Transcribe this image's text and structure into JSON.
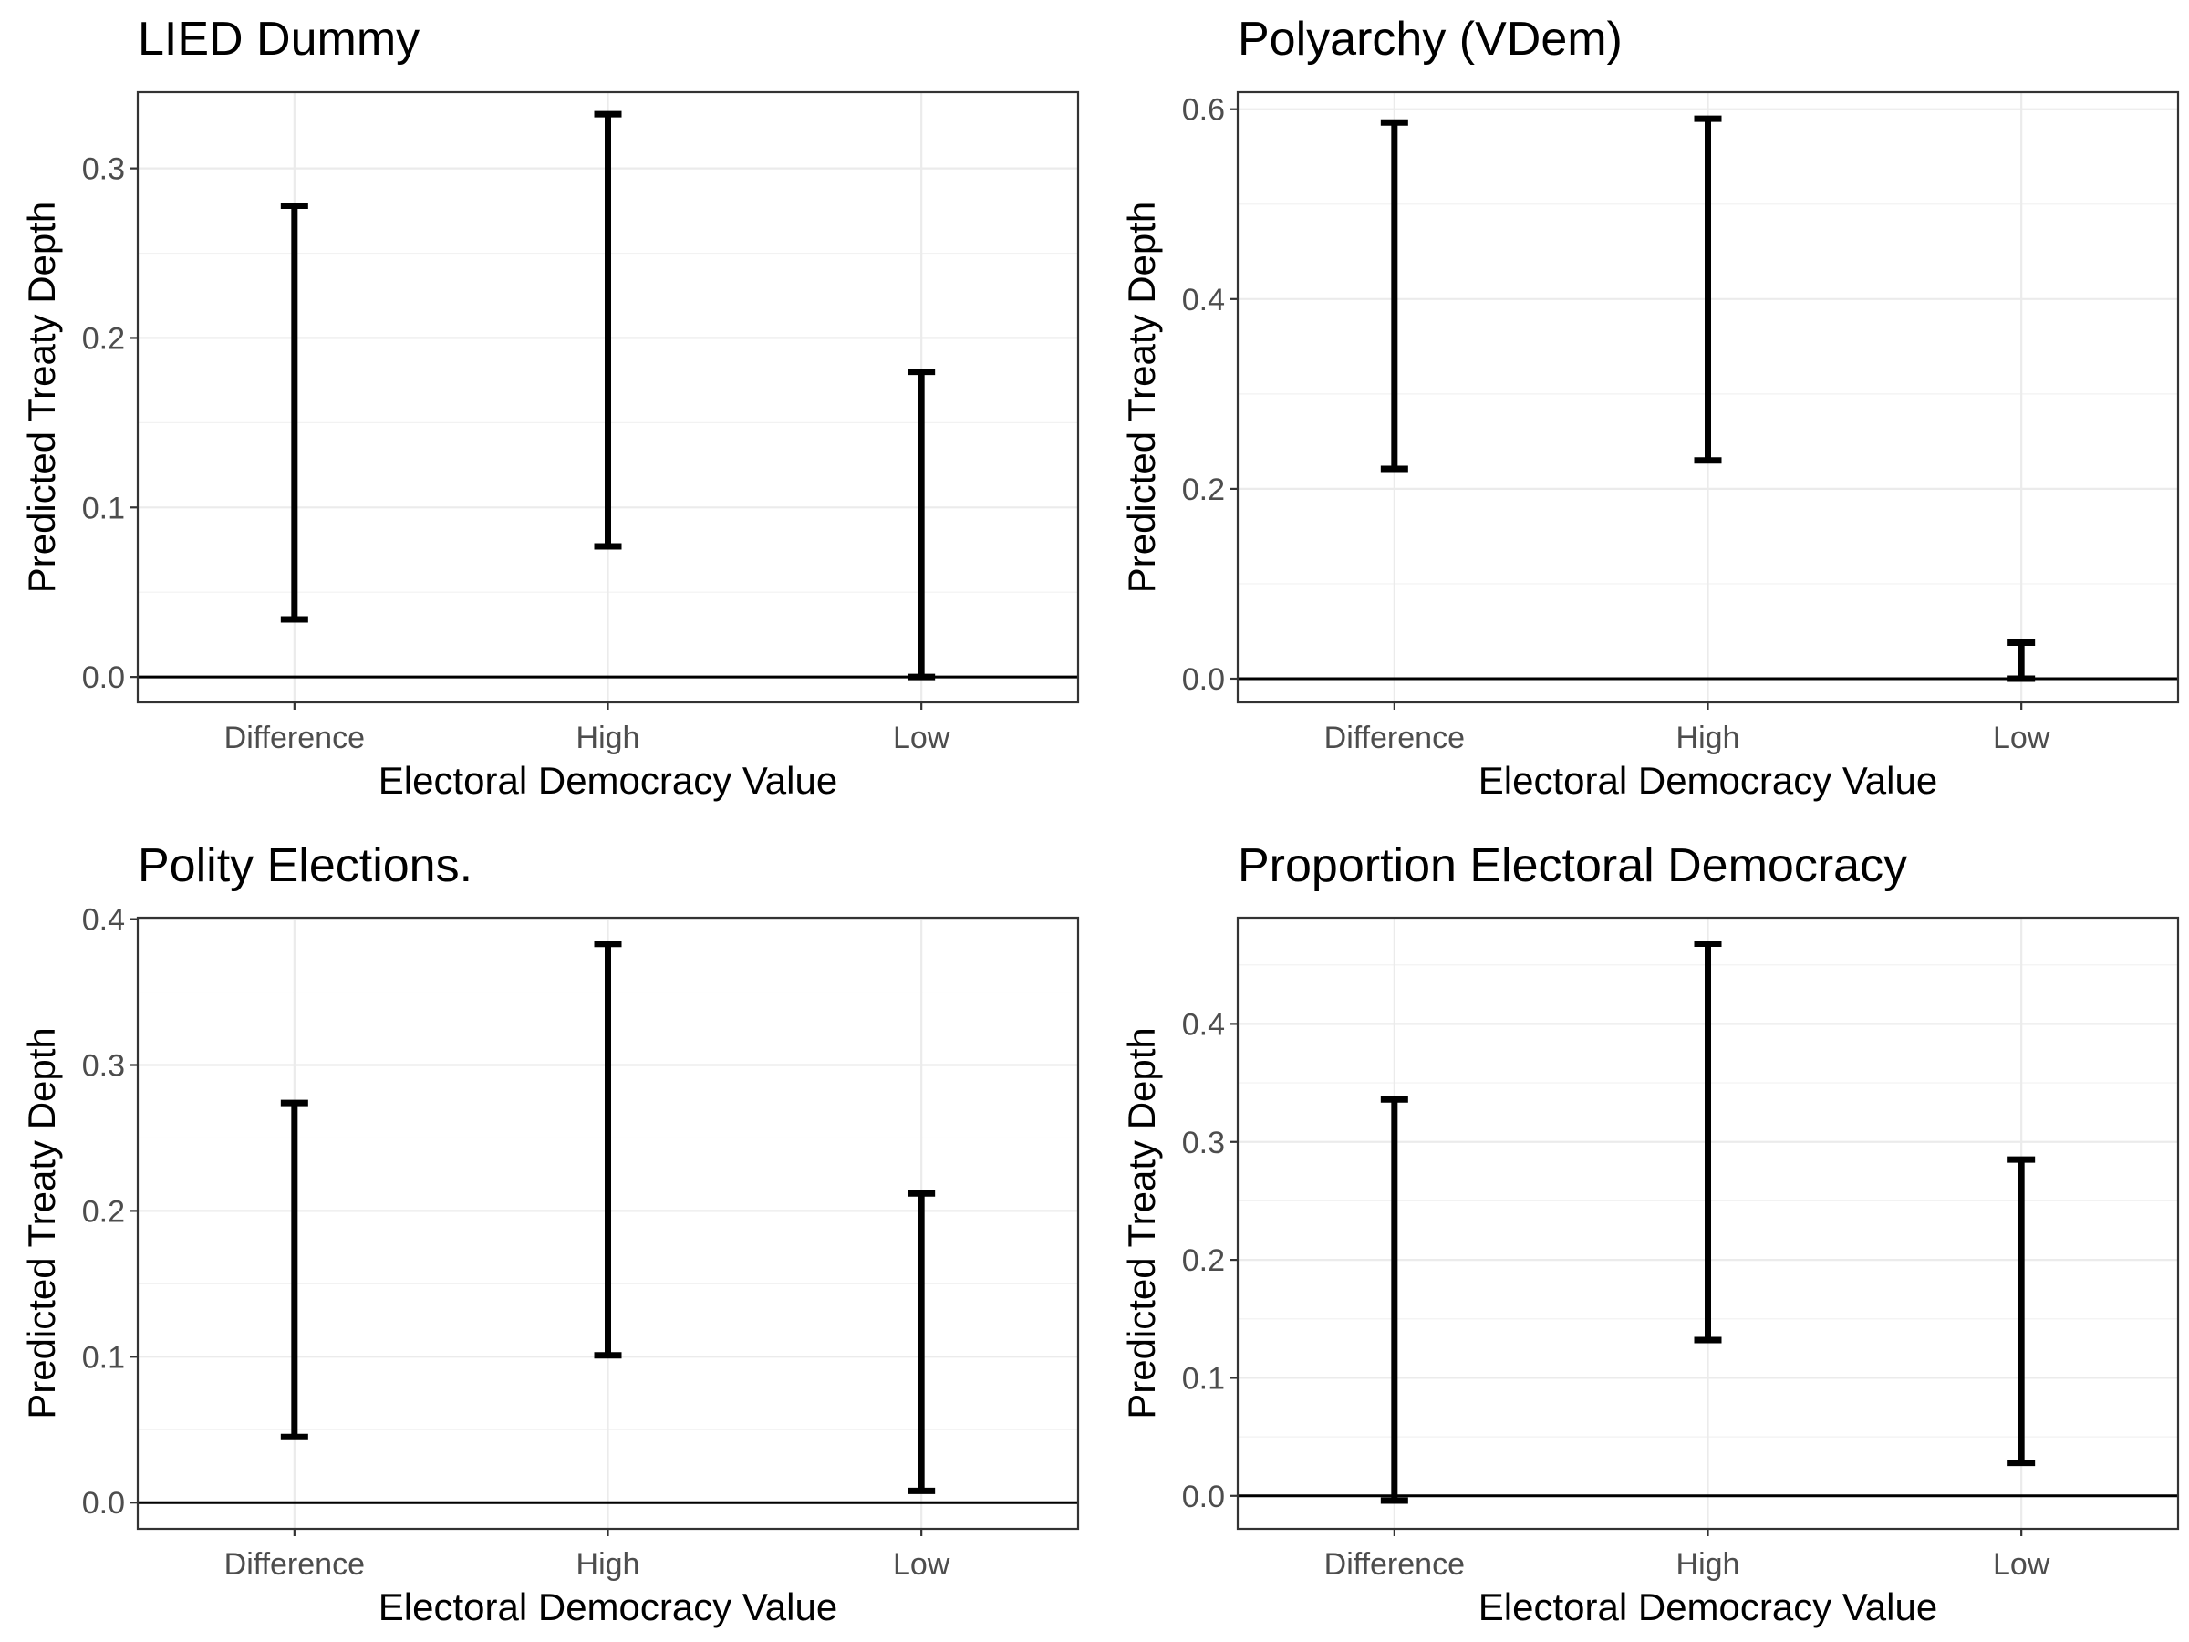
{
  "colors": {
    "background": "#ffffff",
    "panel_border": "#333333",
    "grid": "#ebebeb",
    "errorbar": "#000000",
    "tick_text": "#4d4d4d",
    "reference_line": "#000000"
  },
  "chart_data": [
    {
      "type": "errorbar",
      "title": "LIED Dummy",
      "xlabel": "Electoral Democracy Value",
      "ylabel": "Predicted Treaty Depth",
      "categories": [
        "Difference",
        "High",
        "Low"
      ],
      "lower": [
        0.034,
        0.077,
        0.0
      ],
      "upper": [
        0.278,
        0.332,
        0.18
      ],
      "ylim": [
        -0.015,
        0.345
      ],
      "yticks": [
        0.0,
        0.1,
        0.2,
        0.3
      ],
      "ytick_labels": [
        "0.0",
        "0.1",
        "0.2",
        "0.3"
      ],
      "reference_line_y": 0,
      "grid": true
    },
    {
      "type": "errorbar",
      "title": "Polyarchy (VDem)",
      "xlabel": "Electoral Democracy Value",
      "ylabel": "Predicted Treaty Depth",
      "categories": [
        "Difference",
        "High",
        "Low"
      ],
      "lower": [
        0.221,
        0.23,
        0.0
      ],
      "upper": [
        0.586,
        0.59,
        0.038
      ],
      "ylim": [
        -0.025,
        0.618
      ],
      "yticks": [
        0.0,
        0.2,
        0.4,
        0.6
      ],
      "ytick_labels": [
        "0.0",
        "0.2",
        "0.4",
        "0.6"
      ],
      "reference_line_y": 0,
      "grid": true
    },
    {
      "type": "errorbar",
      "title": "Polity Elections.",
      "xlabel": "Electoral Democracy Value",
      "ylabel": "Predicted Treaty Depth",
      "categories": [
        "Difference",
        "High",
        "Low"
      ],
      "lower": [
        0.045,
        0.101,
        0.008
      ],
      "upper": [
        0.274,
        0.383,
        0.212
      ],
      "ylim": [
        -0.018,
        0.401
      ],
      "yticks": [
        0.0,
        0.1,
        0.2,
        0.3,
        0.4
      ],
      "ytick_labels": [
        "0.0",
        "0.1",
        "0.2",
        "0.3",
        "0.4"
      ],
      "reference_line_y": 0,
      "grid": true
    },
    {
      "type": "errorbar",
      "title": "Proportion Electoral Democracy",
      "xlabel": "Electoral Democracy Value",
      "ylabel": "Predicted Treaty Depth",
      "categories": [
        "Difference",
        "High",
        "Low"
      ],
      "lower": [
        -0.004,
        0.132,
        0.028
      ],
      "upper": [
        0.336,
        0.468,
        0.285
      ],
      "ylim": [
        -0.028,
        0.49
      ],
      "yticks": [
        0.0,
        0.1,
        0.2,
        0.3,
        0.4
      ],
      "ytick_labels": [
        "0.0",
        "0.1",
        "0.2",
        "0.3",
        "0.4"
      ],
      "reference_line_y": 0,
      "grid": true
    }
  ]
}
